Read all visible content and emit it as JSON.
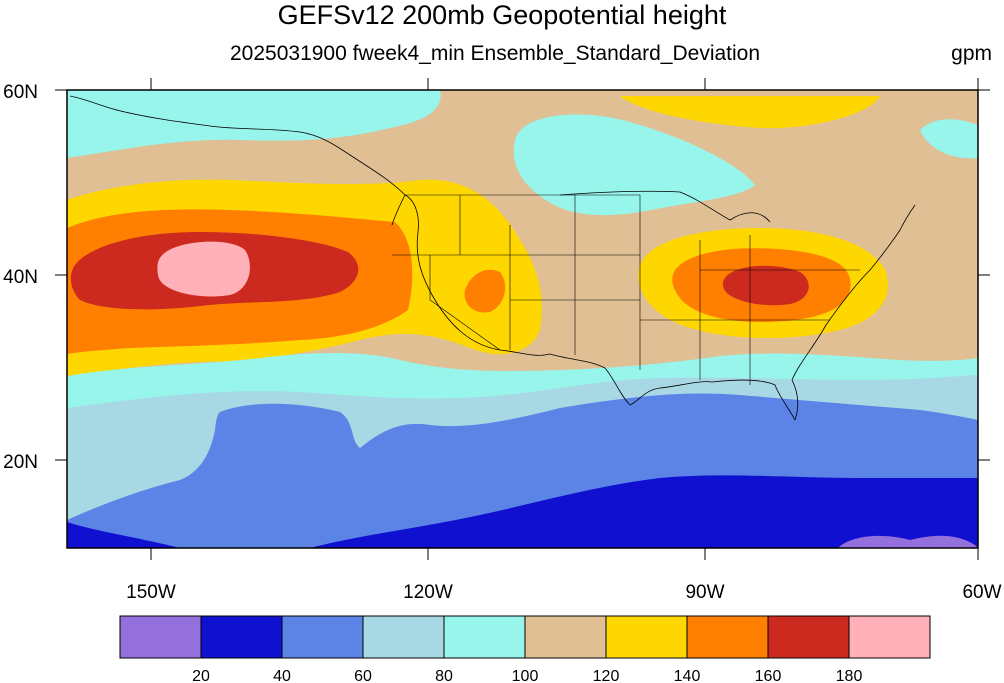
{
  "title": "GEFSv12 200mb Geopotential height",
  "subtitle": "2025031900 fweek4_min Ensemble_Standard_Deviation",
  "units": "gpm",
  "map": {
    "lon_labels": [
      "150W",
      "120W",
      "90W",
      "60W"
    ],
    "lat_labels": [
      "60N",
      "40N",
      "20N"
    ]
  },
  "colorbar": {
    "colors": [
      "#9370db",
      "#1010d0",
      "#5b84e6",
      "#a8d8e4",
      "#98f5ec",
      "#dfbf93",
      "#ffd700",
      "#ff7f00",
      "#cc2a1f",
      "#ffb0b8"
    ],
    "labels": [
      "20",
      "40",
      "60",
      "80",
      "100",
      "120",
      "140",
      "160",
      "180"
    ]
  },
  "colors": {
    "c20": "#9370db",
    "c40": "#1010d0",
    "c60": "#5b84e6",
    "c80": "#a8d8e4",
    "c100": "#98f5ec",
    "c120": "#dfbf93",
    "c140": "#ffd700",
    "c160": "#ff7f00",
    "c180": "#cc2a1f",
    "cmax": "#ffb0b8"
  }
}
